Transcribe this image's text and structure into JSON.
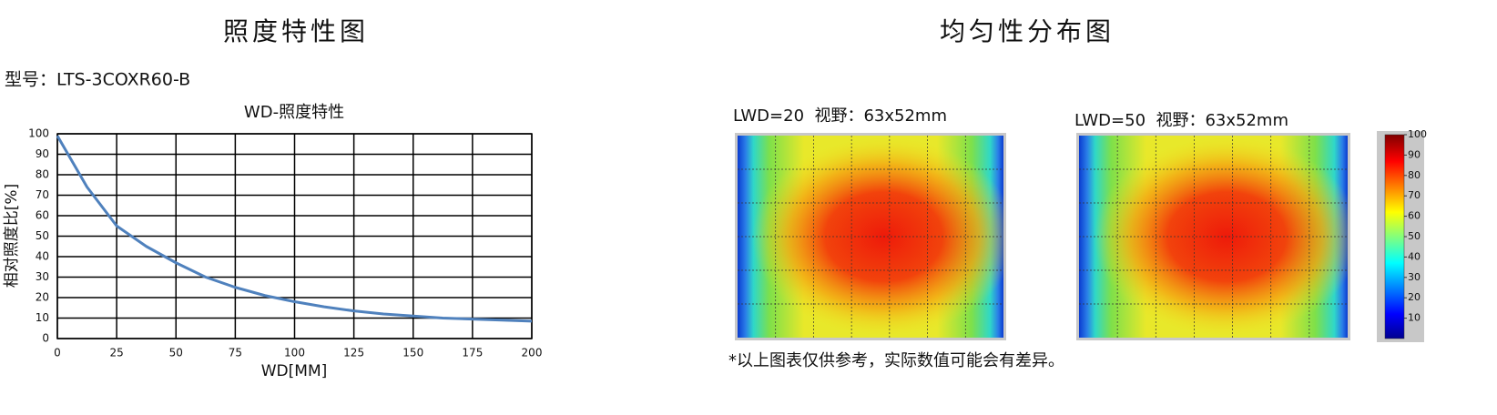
{
  "headers": {
    "left": "照度特性图",
    "right": "均匀性分布图"
  },
  "model": "型号：LTS-3COXR60-B",
  "note": "*以上图表仅供参考，实际数值可能会有差异。",
  "chart_data": [
    {
      "type": "line",
      "title": "WD-照度特性",
      "x_label": "WD[MM]",
      "y_label": "相对照度比[%]",
      "x": [
        0,
        12.5,
        25,
        37.5,
        50,
        62.5,
        75,
        87.5,
        100,
        112.5,
        125,
        137.5,
        150,
        162.5,
        175,
        187.5,
        200
      ],
      "series": [
        {
          "name": "WD-照度特性",
          "color": "#4f81bd",
          "values": [
            99,
            74,
            55,
            45,
            37,
            30,
            25,
            21,
            18,
            15.5,
            13.5,
            12,
            11,
            10,
            9.5,
            9,
            8.5
          ]
        }
      ],
      "xlim": [
        0,
        200
      ],
      "ylim": [
        0,
        100
      ],
      "xticks": [
        0,
        25,
        50,
        75,
        100,
        125,
        150,
        175,
        200
      ],
      "yticks": [
        0,
        10,
        20,
        30,
        40,
        50,
        60,
        70,
        80,
        90,
        100
      ],
      "grid": true
    },
    {
      "type": "heatmap",
      "panels": [
        {
          "title": "LWD=20  视野：63x52mm"
        },
        {
          "title": "LWD=50  视野：63x52mm"
        }
      ],
      "clim": [
        0,
        100
      ],
      "cticks": [
        10,
        20,
        30,
        40,
        50,
        60,
        70,
        80,
        90,
        100
      ]
    }
  ]
}
